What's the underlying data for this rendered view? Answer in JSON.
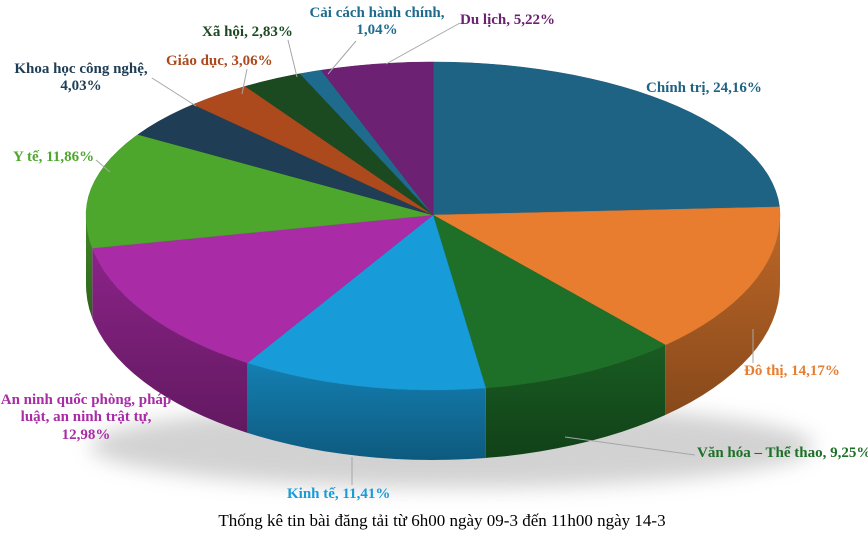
{
  "chart_data": {
    "type": "pie",
    "style": "3d",
    "title": "Thống kê tin bài đăng tải từ 6h00 ngày 09-3 đến 11h00 ngày 14-3",
    "title_color": "#000000",
    "background": "#ffffff",
    "direction": "clockwise",
    "start_angle_deg": 0,
    "value_unit": "%",
    "value_format": "decimal-comma",
    "legend": "none",
    "labels_position": "outside-with-leader-lines",
    "leader_line_color": "#a6a6a6",
    "slices": [
      {
        "id": "chinh-tri",
        "label": "Chính trị",
        "value": 24.16,
        "display": "Chính trị, 24,16%",
        "color": "#1e6284"
      },
      {
        "id": "do-thi",
        "label": "Đô thị",
        "value": 14.17,
        "display": "Đô thị, 14,17%",
        "color": "#e87d2f"
      },
      {
        "id": "van-hoa",
        "label": "Văn hóa – Thể thao",
        "value": 9.25,
        "display": "Văn hóa – Thể thao, 9,25%",
        "color": "#1e7029"
      },
      {
        "id": "kinh-te",
        "label": "Kinh tế",
        "value": 11.41,
        "display": "Kinh tế, 11,41%",
        "color": "#189bd9"
      },
      {
        "id": "an-ninh",
        "label": "An ninh quốc phòng, pháp luật, an ninh trật tự",
        "value": 12.98,
        "display": "An ninh quốc phòng, pháp luật, an ninh trật tự, 12,98%",
        "color": "#a92ba6"
      },
      {
        "id": "y-te",
        "label": "Y tế",
        "value": 11.86,
        "display": "Y tế, 11,86%",
        "color": "#4da72d"
      },
      {
        "id": "khcn",
        "label": "Khoa học công nghệ",
        "value": 4.03,
        "display": "Khoa học công nghệ, 4,03%",
        "color": "#1f3d54"
      },
      {
        "id": "giao-duc",
        "label": "Giáo dục",
        "value": 3.06,
        "display": "Giáo dục, 3,06%",
        "color": "#ac4a1e"
      },
      {
        "id": "xa-hoi",
        "label": "Xã hội",
        "value": 2.83,
        "display": "Xã hội, 2,83%",
        "color": "#1b4a21"
      },
      {
        "id": "cai-cach",
        "label": "Cải cách hành chính",
        "value": 1.04,
        "display": "Cải cách hành chính, 1,04%",
        "color": "#1e6b8e"
      },
      {
        "id": "du-lich",
        "label": "Du lịch",
        "value": 5.22,
        "display": "Du lịch, 5,22%",
        "color": "#6c2173"
      }
    ]
  }
}
